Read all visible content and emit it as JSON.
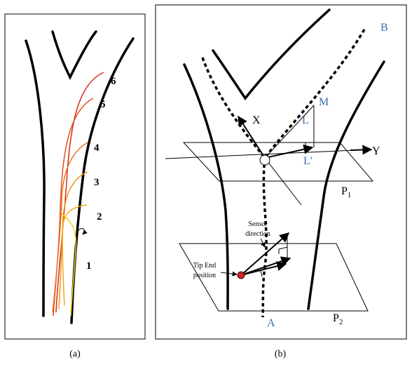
{
  "panel_a": {
    "numbers": [
      "1",
      "2",
      "3",
      "4",
      "5",
      "6"
    ],
    "caption": "(a)"
  },
  "panel_b": {
    "caption": "(b)",
    "labels": {
      "B": "B",
      "M": "M",
      "L": "L",
      "X": "X",
      "Y": "Y",
      "L_prime": "L'",
      "A": "A"
    },
    "planes": [
      {
        "text": "P",
        "sub": "1"
      },
      {
        "text": "P",
        "sub": "2"
      }
    ],
    "sensor_direction": [
      "Sensor",
      "direction"
    ],
    "tip_end_position": [
      "Tip End",
      "position"
    ]
  }
}
